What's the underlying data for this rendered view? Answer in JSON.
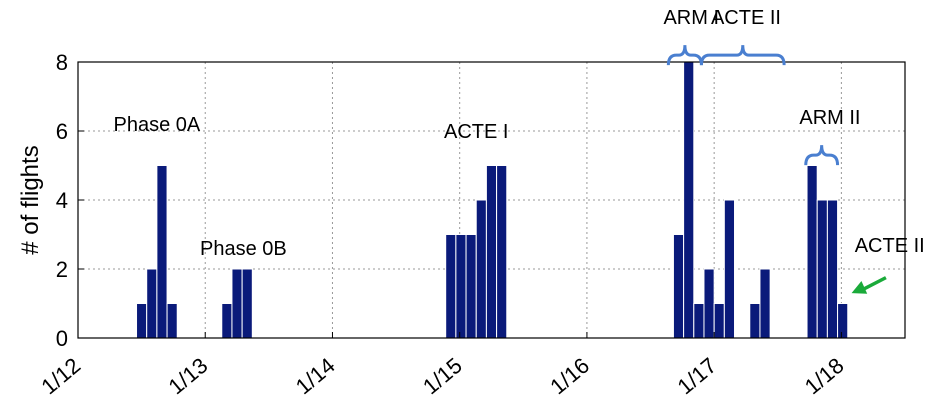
{
  "chart_data": {
    "type": "bar",
    "title": "",
    "xlabel": "",
    "ylabel": "# of flights",
    "ylim": [
      0,
      8
    ],
    "xlim": [
      12.0,
      18.5
    ],
    "yticks": [
      "0",
      "2",
      "4",
      "6",
      "8"
    ],
    "xtick_values": [
      12,
      13,
      14,
      15,
      16,
      17,
      18
    ],
    "xtick_labels": [
      "1/12",
      "1/13",
      "1/14",
      "1/15",
      "1/16",
      "1/17",
      "1/18"
    ],
    "grid": true,
    "bar_color": "#0a1a7a",
    "bracket_color": "#4a7fd0",
    "arrow_color": "#1aaa3a",
    "bars": [
      {
        "x": 12.5,
        "value": 1
      },
      {
        "x": 12.58,
        "value": 2
      },
      {
        "x": 12.66,
        "value": 5
      },
      {
        "x": 12.74,
        "value": 1
      },
      {
        "x": 13.17,
        "value": 1
      },
      {
        "x": 13.25,
        "value": 2
      },
      {
        "x": 13.33,
        "value": 2
      },
      {
        "x": 14.93,
        "value": 3
      },
      {
        "x": 15.01,
        "value": 3
      },
      {
        "x": 15.09,
        "value": 3
      },
      {
        "x": 15.17,
        "value": 4
      },
      {
        "x": 15.25,
        "value": 5
      },
      {
        "x": 15.33,
        "value": 5
      },
      {
        "x": 16.72,
        "value": 3
      },
      {
        "x": 16.8,
        "value": 8
      },
      {
        "x": 16.88,
        "value": 1
      },
      {
        "x": 16.96,
        "value": 2
      },
      {
        "x": 17.04,
        "value": 1
      },
      {
        "x": 17.12,
        "value": 4
      },
      {
        "x": 17.32,
        "value": 1
      },
      {
        "x": 17.4,
        "value": 2
      },
      {
        "x": 17.77,
        "value": 5
      },
      {
        "x": 17.85,
        "value": 4
      },
      {
        "x": 17.93,
        "value": 4
      },
      {
        "x": 18.01,
        "value": 1
      }
    ],
    "annotations": [
      {
        "text": "Phase 0A",
        "x": 12.62,
        "y": 6.0
      },
      {
        "text": "Phase 0B",
        "x": 13.3,
        "y": 2.4
      },
      {
        "text": "ACTE I",
        "x": 15.13,
        "y": 5.8
      },
      {
        "text": "ARM I",
        "x": 16.82,
        "y": 9.1
      },
      {
        "text": "ACTE II",
        "x": 17.25,
        "y": 9.1
      },
      {
        "text": "ARM II",
        "x": 17.91,
        "y": 6.2
      },
      {
        "text": "ACTE II",
        "x": 18.38,
        "y": 2.5
      }
    ],
    "brackets": [
      {
        "x1": 16.64,
        "x2": 16.9,
        "y": 8.2
      },
      {
        "x1": 16.9,
        "x2": 17.55,
        "y": 8.2
      },
      {
        "x1": 17.72,
        "x2": 17.97,
        "y": 5.3
      }
    ],
    "arrow": {
      "x_from": 18.35,
      "y_from": 1.75,
      "x_to": 18.08,
      "y_to": 1.3
    }
  }
}
